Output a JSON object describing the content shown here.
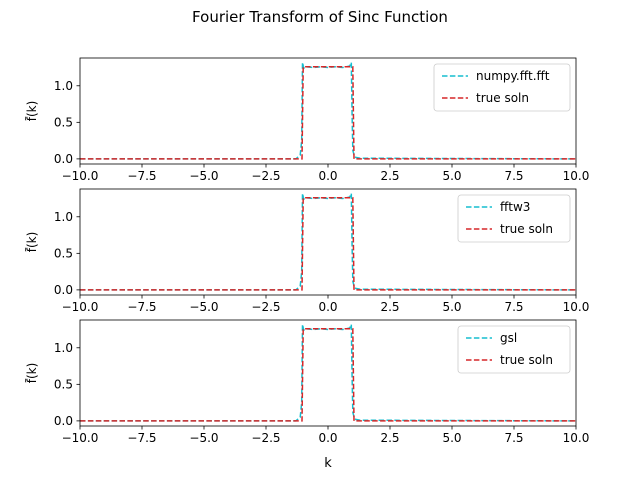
{
  "figure": {
    "suptitle": "Fourier Transform of Sinc Function",
    "xlabel": "k",
    "ylabel": "f̃(k)"
  },
  "colors": {
    "fft": "#17becf",
    "true": "#d62728"
  },
  "chart_data": [
    {
      "type": "line",
      "xlim": [
        -10,
        10
      ],
      "ylim": [
        -0.07,
        1.38
      ],
      "xticks": [
        "−10.0",
        "−7.5",
        "−5.0",
        "−2.5",
        "0.0",
        "2.5",
        "5.0",
        "7.5",
        "10.0"
      ],
      "yticks": [
        "0.0",
        "0.5",
        "1.0"
      ],
      "legend_position": "upper-right",
      "series": [
        {
          "name": "numpy.fft.fft",
          "style": "dashed",
          "color": "#17becf",
          "x": [
            -10,
            -1.3,
            -1.12,
            -1.06,
            -1.03,
            -0.98,
            -0.9,
            -0.6,
            -0.3,
            0,
            0.3,
            0.6,
            0.88,
            0.94,
            0.97,
            1.0,
            1.06,
            1.12,
            1.3,
            10
          ],
          "y": [
            0,
            0,
            0.05,
            0.25,
            1.32,
            1.24,
            1.26,
            1.25,
            1.26,
            1.25,
            1.26,
            1.25,
            1.27,
            1.32,
            0.6,
            0.12,
            0.04,
            0.02,
            0.01,
            0
          ]
        },
        {
          "name": "true soln",
          "style": "dashed",
          "color": "#d62728",
          "x": [
            -10,
            -1.05,
            -1.0,
            1.0,
            1.05,
            10
          ],
          "y": [
            0,
            0,
            1.26,
            1.26,
            0,
            0
          ]
        }
      ]
    },
    {
      "type": "line",
      "xlim": [
        -10,
        10
      ],
      "ylim": [
        -0.07,
        1.38
      ],
      "xticks": [
        "−10.0",
        "−7.5",
        "−5.0",
        "−2.5",
        "0.0",
        "2.5",
        "5.0",
        "7.5",
        "10.0"
      ],
      "yticks": [
        "0.0",
        "0.5",
        "1.0"
      ],
      "legend_position": "upper-right",
      "series": [
        {
          "name": "fftw3",
          "style": "dashed",
          "color": "#17becf",
          "x": [
            -10,
            -1.3,
            -1.12,
            -1.06,
            -1.03,
            -0.98,
            -0.9,
            -0.6,
            -0.3,
            0,
            0.3,
            0.6,
            0.88,
            0.94,
            0.97,
            1.0,
            1.06,
            1.12,
            1.3,
            10
          ],
          "y": [
            0,
            0,
            0.05,
            0.25,
            1.32,
            1.24,
            1.26,
            1.25,
            1.26,
            1.25,
            1.26,
            1.25,
            1.27,
            1.32,
            0.6,
            0.12,
            0.04,
            0.02,
            0.01,
            0
          ]
        },
        {
          "name": "true soln",
          "style": "dashed",
          "color": "#d62728",
          "x": [
            -10,
            -1.05,
            -1.0,
            1.0,
            1.05,
            10
          ],
          "y": [
            0,
            0,
            1.26,
            1.26,
            0,
            0
          ]
        }
      ]
    },
    {
      "type": "line",
      "xlim": [
        -10,
        10
      ],
      "ylim": [
        -0.07,
        1.38
      ],
      "xticks": [
        "−10.0",
        "−7.5",
        "−5.0",
        "−2.5",
        "0.0",
        "2.5",
        "5.0",
        "7.5",
        "10.0"
      ],
      "yticks": [
        "0.0",
        "0.5",
        "1.0"
      ],
      "legend_position": "upper-right",
      "series": [
        {
          "name": "gsl",
          "style": "dashed",
          "color": "#17becf",
          "x": [
            -10,
            -1.3,
            -1.12,
            -1.06,
            -1.03,
            -0.98,
            -0.9,
            -0.6,
            -0.3,
            0,
            0.3,
            0.6,
            0.88,
            0.94,
            0.97,
            1.0,
            1.06,
            1.12,
            1.3,
            10
          ],
          "y": [
            0,
            0,
            0.05,
            0.25,
            1.32,
            1.24,
            1.26,
            1.25,
            1.26,
            1.25,
            1.26,
            1.25,
            1.27,
            1.32,
            0.6,
            0.12,
            0.04,
            0.02,
            0.01,
            0
          ]
        },
        {
          "name": "true soln",
          "style": "dashed",
          "color": "#d62728",
          "x": [
            -10,
            -1.05,
            -1.0,
            1.0,
            1.05,
            10
          ],
          "y": [
            0,
            0,
            1.26,
            1.26,
            0,
            0
          ]
        }
      ]
    }
  ]
}
